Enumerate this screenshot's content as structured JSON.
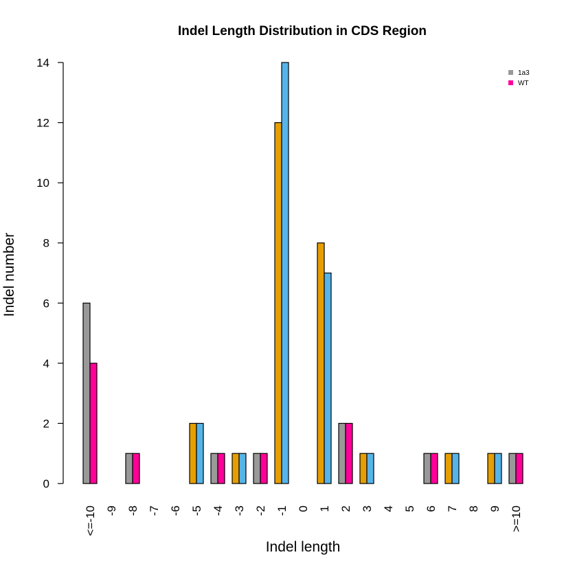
{
  "chart_data": {
    "type": "bar",
    "title": "Indel Length Distribution in CDS Region",
    "xlabel": "Indel length",
    "ylabel": "Indel number",
    "ylim": [
      0,
      14
    ],
    "yticks": [
      0,
      2,
      4,
      6,
      8,
      10,
      12,
      14
    ],
    "grid": false,
    "legend_placement": "top-right",
    "categories": [
      "<=-10",
      "-9",
      "-8",
      "-7",
      "-6",
      "-5",
      "-4",
      "-3",
      "-2",
      "-1",
      "0",
      "1",
      "2",
      "3",
      "4",
      "5",
      "6",
      "7",
      "8",
      "9",
      ">=10"
    ],
    "series": [
      {
        "name": "1a3",
        "values": [
          6,
          0,
          1,
          0,
          0,
          2,
          1,
          1,
          1,
          12,
          0,
          8,
          2,
          1,
          0,
          0,
          1,
          1,
          0,
          1,
          1
        ]
      },
      {
        "name": "WT",
        "values": [
          4,
          0,
          1,
          0,
          0,
          2,
          1,
          1,
          1,
          14,
          0,
          7,
          2,
          1,
          0,
          0,
          1,
          1,
          0,
          1,
          1
        ]
      }
    ],
    "bar_colors_cycle": [
      "#999999",
      "#FF0099",
      "#E69F00",
      "#56B4E9"
    ],
    "legend_colors": [
      "#999999",
      "#FF0099"
    ]
  }
}
